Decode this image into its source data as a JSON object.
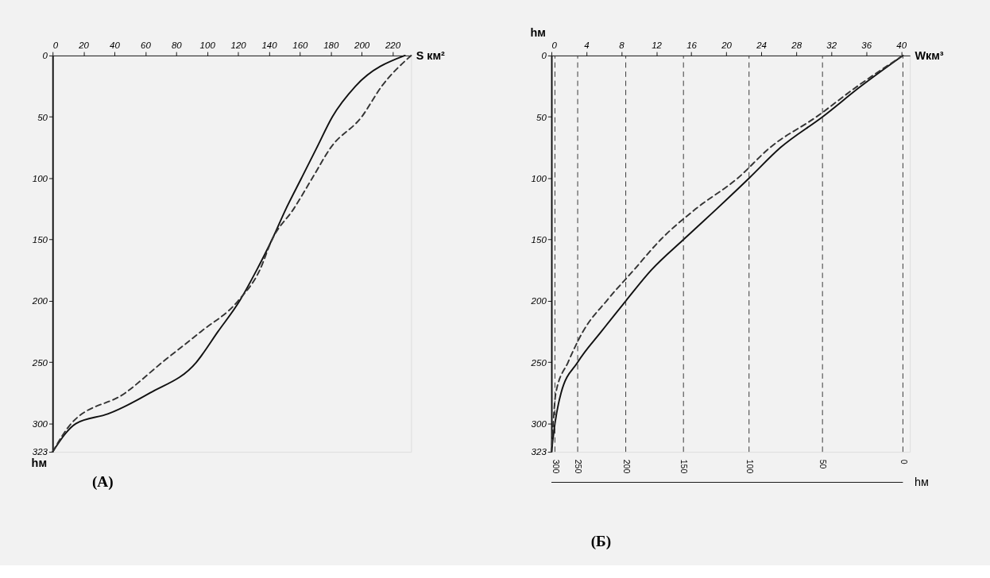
{
  "chart_data": [
    {
      "type": "line",
      "title": "(A)",
      "xlabel": "S км²",
      "ylabel": "hм",
      "xlim": [
        0,
        232
      ],
      "xticks": [
        0,
        20,
        40,
        60,
        80,
        100,
        120,
        140,
        160,
        180,
        200,
        220
      ],
      "ylim": [
        323,
        0
      ],
      "yticks": [
        0,
        50,
        100,
        150,
        200,
        250,
        300,
        323
      ],
      "series": [
        {
          "color": "#111111",
          "line_style": "solid",
          "x": [
            228,
            196,
            181,
            171,
            161,
            151,
            142,
            132,
            121,
            107,
            93,
            63,
            36,
            15,
            0
          ],
          "values": [
            0,
            25,
            50,
            75,
            100,
            125,
            150,
            175,
            200,
            225,
            250,
            275,
            292,
            300,
            323
          ]
        },
        {
          "color": "#333333",
          "line_style": "dashed",
          "x": [
            232,
            213,
            200,
            180,
            168,
            156,
            142,
            134,
            120,
            96,
            71,
            47,
            12,
            0
          ],
          "values": [
            0,
            25,
            50,
            75,
            100,
            125,
            150,
            175,
            200,
            225,
            250,
            275,
            300,
            323
          ]
        }
      ]
    },
    {
      "type": "line",
      "title": "(Б)",
      "xlabel": "Wкм³",
      "ylabel": "hм",
      "annotations": [
        "hм",
        {
          "text": "300",
          "x": 0.4,
          "y": 323
        },
        {
          "text": "250",
          "x": 3.0,
          "y": 323
        },
        {
          "text": "200",
          "x": 8.5,
          "y": 323
        },
        {
          "text": "150",
          "x": 15.1,
          "y": 323
        },
        {
          "text": "100",
          "x": 22.6,
          "y": 323
        },
        {
          "text": "50",
          "x": 31,
          "y": 323
        },
        {
          "text": "0",
          "x": 40.2,
          "y": 323
        }
      ],
      "xlim": [
        0,
        41
      ],
      "xticks": [
        0,
        4,
        8,
        12,
        16,
        20,
        24,
        28,
        32,
        36,
        40
      ],
      "ylim": [
        323,
        0
      ],
      "yticks": [
        0,
        50,
        100,
        150,
        200,
        250,
        300,
        323
      ],
      "ref_lines": [
        {
          "axis": "x",
          "value": 0.4,
          "line_style": "dashed",
          "color": "#333333"
        },
        {
          "axis": "x",
          "value": 3.0,
          "line_style": "dashed",
          "color": "#333333"
        },
        {
          "axis": "x",
          "value": 8.5,
          "line_style": "dashed",
          "color": "#333333"
        },
        {
          "axis": "x",
          "value": 15.1,
          "line_style": "dashed",
          "color": "#333333"
        },
        {
          "axis": "x",
          "value": 22.6,
          "line_style": "dashed",
          "color": "#333333"
        },
        {
          "axis": "x",
          "value": 31,
          "line_style": "dashed",
          "color": "#333333"
        },
        {
          "axis": "x",
          "value": 40.2,
          "line_style": "dashed",
          "color": "#333333"
        }
      ],
      "series": [
        {
          "color": "#111111",
          "line_style": "solid",
          "x": [
            40.2,
            35.4,
            31,
            26.2,
            22.6,
            18.9,
            15.1,
            11.4,
            8.5,
            5.7,
            3.0,
            1.1,
            0.4,
            0
          ],
          "values": [
            0,
            25,
            50,
            75,
            100,
            125,
            150,
            175,
            200,
            225,
            250,
            275,
            300,
            323
          ]
        },
        {
          "color": "#333333",
          "line_style": "dashed",
          "x": [
            40.2,
            35.0,
            30.3,
            25,
            21.3,
            16.5,
            12.5,
            9.4,
            6.3,
            3.6,
            1.9,
            0.5,
            0.2,
            0
          ],
          "values": [
            0,
            25,
            50,
            75,
            100,
            125,
            150,
            175,
            200,
            225,
            250,
            275,
            300,
            323
          ]
        }
      ]
    }
  ]
}
